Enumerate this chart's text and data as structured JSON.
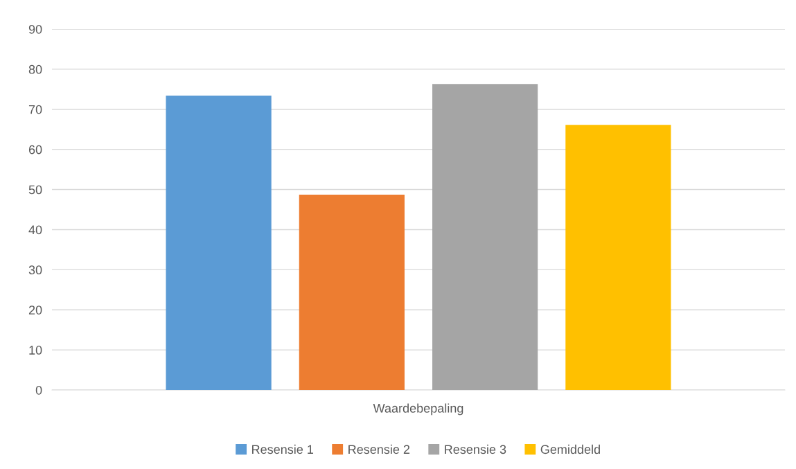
{
  "chart_data": {
    "type": "bar",
    "categories": [
      "Waardebepaling"
    ],
    "series": [
      {
        "name": "Resensie 1",
        "color": "#5b9bd5",
        "values": [
          73.4
        ]
      },
      {
        "name": "Resensie 2",
        "color": "#ed7d31",
        "values": [
          48.7
        ]
      },
      {
        "name": "Resensie 3",
        "color": "#a5a5a5",
        "values": [
          76.3
        ]
      },
      {
        "name": "Gemiddeld",
        "color": "#ffc000",
        "values": [
          66.1
        ]
      }
    ],
    "ylim": [
      0,
      90
    ],
    "yticks": [
      0,
      10,
      20,
      30,
      40,
      50,
      60,
      70,
      80,
      90
    ],
    "grid": "y",
    "legend": "bottom"
  }
}
